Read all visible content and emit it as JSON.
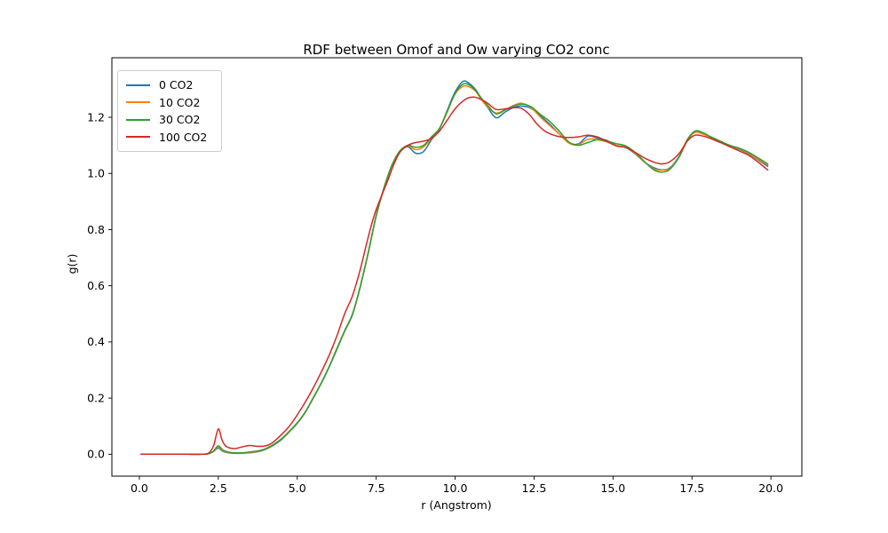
{
  "chart_data": {
    "type": "line",
    "title": "RDF between Omof and Ow varying CO2 conc",
    "xlabel": "r (Angstrom)",
    "ylabel": "g(r)",
    "xlim": [
      -0.87,
      20.98
    ],
    "ylim": [
      -0.078,
      1.412
    ],
    "x_ticks": [
      0.0,
      2.5,
      5.0,
      7.5,
      10.0,
      12.5,
      15.0,
      17.5,
      20.0
    ],
    "x_tick_labels": [
      "0.0",
      "2.5",
      "5.0",
      "7.5",
      "10.0",
      "12.5",
      "15.0",
      "17.5",
      "20.0"
    ],
    "y_ticks": [
      0.0,
      0.2,
      0.4,
      0.6,
      0.8,
      1.0,
      1.2
    ],
    "y_tick_labels": [
      "0.0",
      "0.2",
      "0.4",
      "0.6",
      "0.8",
      "1.0",
      "1.2"
    ],
    "grid": false,
    "legend_position": "upper left",
    "axis_color": "#000000",
    "background": "#ffffff",
    "series": [
      {
        "name": "0 CO2",
        "color": "#1f77b4",
        "points": [
          [
            0.05,
            0
          ],
          [
            0.5,
            0
          ],
          [
            1,
            0
          ],
          [
            1.5,
            0
          ],
          [
            2,
            0
          ],
          [
            2.2,
            0.002
          ],
          [
            2.35,
            0.01
          ],
          [
            2.5,
            0.022
          ],
          [
            2.65,
            0.01
          ],
          [
            2.9,
            0.004
          ],
          [
            3.2,
            0.003
          ],
          [
            3.5,
            0.005
          ],
          [
            3.8,
            0.01
          ],
          [
            4.0,
            0.018
          ],
          [
            4.25,
            0.032
          ],
          [
            4.5,
            0.052
          ],
          [
            4.75,
            0.08
          ],
          [
            5.0,
            0.11
          ],
          [
            5.25,
            0.148
          ],
          [
            5.5,
            0.198
          ],
          [
            5.75,
            0.25
          ],
          [
            6.0,
            0.308
          ],
          [
            6.25,
            0.372
          ],
          [
            6.5,
            0.437
          ],
          [
            6.75,
            0.497
          ],
          [
            7.0,
            0.598
          ],
          [
            7.25,
            0.718
          ],
          [
            7.5,
            0.848
          ],
          [
            7.75,
            0.948
          ],
          [
            8.0,
            1.028
          ],
          [
            8.25,
            1.078
          ],
          [
            8.5,
            1.095
          ],
          [
            8.75,
            1.072
          ],
          [
            9.0,
            1.078
          ],
          [
            9.25,
            1.12
          ],
          [
            9.5,
            1.158
          ],
          [
            9.75,
            1.225
          ],
          [
            10.0,
            1.29
          ],
          [
            10.25,
            1.328
          ],
          [
            10.45,
            1.32
          ],
          [
            10.65,
            1.298
          ],
          [
            10.85,
            1.262
          ],
          [
            11.05,
            1.232
          ],
          [
            11.3,
            1.198
          ],
          [
            11.6,
            1.22
          ],
          [
            11.85,
            1.235
          ],
          [
            12.1,
            1.24
          ],
          [
            12.4,
            1.232
          ],
          [
            12.7,
            1.205
          ],
          [
            13.0,
            1.175
          ],
          [
            13.3,
            1.14
          ],
          [
            13.6,
            1.11
          ],
          [
            13.9,
            1.105
          ],
          [
            14.2,
            1.133
          ],
          [
            14.5,
            1.126
          ],
          [
            14.8,
            1.118
          ],
          [
            15.1,
            1.1
          ],
          [
            15.4,
            1.092
          ],
          [
            15.7,
            1.07
          ],
          [
            16.0,
            1.04
          ],
          [
            16.3,
            1.02
          ],
          [
            16.55,
            1.013
          ],
          [
            16.8,
            1.02
          ],
          [
            17.1,
            1.062
          ],
          [
            17.35,
            1.118
          ],
          [
            17.6,
            1.148
          ],
          [
            17.85,
            1.142
          ],
          [
            18.1,
            1.128
          ],
          [
            18.4,
            1.112
          ],
          [
            18.7,
            1.098
          ],
          [
            19.0,
            1.086
          ],
          [
            19.3,
            1.07
          ],
          [
            19.6,
            1.048
          ],
          [
            19.9,
            1.025
          ]
        ]
      },
      {
        "name": "10 CO2",
        "color": "#ff7f0e",
        "points": [
          [
            0.05,
            0
          ],
          [
            0.5,
            0
          ],
          [
            1,
            0
          ],
          [
            1.5,
            0
          ],
          [
            2,
            0
          ],
          [
            2.2,
            0.002
          ],
          [
            2.35,
            0.011
          ],
          [
            2.5,
            0.026
          ],
          [
            2.65,
            0.012
          ],
          [
            2.9,
            0.005
          ],
          [
            3.2,
            0.004
          ],
          [
            3.5,
            0.006
          ],
          [
            3.8,
            0.012
          ],
          [
            4.0,
            0.019
          ],
          [
            4.25,
            0.034
          ],
          [
            4.5,
            0.054
          ],
          [
            4.75,
            0.081
          ],
          [
            5.0,
            0.111
          ],
          [
            5.25,
            0.149
          ],
          [
            5.5,
            0.199
          ],
          [
            5.75,
            0.251
          ],
          [
            6.0,
            0.309
          ],
          [
            6.25,
            0.374
          ],
          [
            6.5,
            0.438
          ],
          [
            6.75,
            0.499
          ],
          [
            7.0,
            0.599
          ],
          [
            7.25,
            0.719
          ],
          [
            7.5,
            0.849
          ],
          [
            7.75,
            0.949
          ],
          [
            8.0,
            1.029
          ],
          [
            8.25,
            1.079
          ],
          [
            8.5,
            1.098
          ],
          [
            8.75,
            1.085
          ],
          [
            9.0,
            1.095
          ],
          [
            9.25,
            1.125
          ],
          [
            9.5,
            1.159
          ],
          [
            9.75,
            1.222
          ],
          [
            10.0,
            1.283
          ],
          [
            10.25,
            1.31
          ],
          [
            10.45,
            1.308
          ],
          [
            10.65,
            1.292
          ],
          [
            10.85,
            1.26
          ],
          [
            11.05,
            1.235
          ],
          [
            11.3,
            1.215
          ],
          [
            11.6,
            1.228
          ],
          [
            11.85,
            1.242
          ],
          [
            12.1,
            1.25
          ],
          [
            12.4,
            1.235
          ],
          [
            12.7,
            1.2
          ],
          [
            13.0,
            1.17
          ],
          [
            13.3,
            1.14
          ],
          [
            13.6,
            1.108
          ],
          [
            13.9,
            1.102
          ],
          [
            14.2,
            1.122
          ],
          [
            14.5,
            1.12
          ],
          [
            14.8,
            1.112
          ],
          [
            15.1,
            1.1
          ],
          [
            15.4,
            1.093
          ],
          [
            15.7,
            1.072
          ],
          [
            16.0,
            1.04
          ],
          [
            16.3,
            1.016
          ],
          [
            16.55,
            1.012
          ],
          [
            16.8,
            1.018
          ],
          [
            17.1,
            1.06
          ],
          [
            17.35,
            1.116
          ],
          [
            17.6,
            1.146
          ],
          [
            17.85,
            1.14
          ],
          [
            18.1,
            1.128
          ],
          [
            18.4,
            1.113
          ],
          [
            18.7,
            1.098
          ],
          [
            19.0,
            1.088
          ],
          [
            19.3,
            1.072
          ],
          [
            19.6,
            1.05
          ],
          [
            19.9,
            1.03
          ]
        ]
      },
      {
        "name": "30 CO2",
        "color": "#2ca02c",
        "points": [
          [
            0.05,
            0
          ],
          [
            0.5,
            0
          ],
          [
            1,
            0
          ],
          [
            1.5,
            0
          ],
          [
            2,
            0
          ],
          [
            2.2,
            0.002
          ],
          [
            2.35,
            0.012
          ],
          [
            2.5,
            0.03
          ],
          [
            2.65,
            0.015
          ],
          [
            2.9,
            0.006
          ],
          [
            3.2,
            0.005
          ],
          [
            3.5,
            0.008
          ],
          [
            3.8,
            0.013
          ],
          [
            4.0,
            0.02
          ],
          [
            4.25,
            0.035
          ],
          [
            4.5,
            0.055
          ],
          [
            4.75,
            0.082
          ],
          [
            5.0,
            0.112
          ],
          [
            5.25,
            0.15
          ],
          [
            5.5,
            0.2
          ],
          [
            5.75,
            0.252
          ],
          [
            6.0,
            0.31
          ],
          [
            6.25,
            0.375
          ],
          [
            6.5,
            0.44
          ],
          [
            6.75,
            0.5
          ],
          [
            7.0,
            0.6
          ],
          [
            7.25,
            0.72
          ],
          [
            7.5,
            0.85
          ],
          [
            7.75,
            0.95
          ],
          [
            8.0,
            1.03
          ],
          [
            8.25,
            1.08
          ],
          [
            8.5,
            1.1
          ],
          [
            8.75,
            1.093
          ],
          [
            9.0,
            1.1
          ],
          [
            9.25,
            1.13
          ],
          [
            9.5,
            1.16
          ],
          [
            9.75,
            1.22
          ],
          [
            10.0,
            1.285
          ],
          [
            10.25,
            1.318
          ],
          [
            10.45,
            1.315
          ],
          [
            10.65,
            1.295
          ],
          [
            10.85,
            1.265
          ],
          [
            11.05,
            1.24
          ],
          [
            11.3,
            1.212
          ],
          [
            11.6,
            1.227
          ],
          [
            11.85,
            1.24
          ],
          [
            12.1,
            1.247
          ],
          [
            12.4,
            1.238
          ],
          [
            12.7,
            1.21
          ],
          [
            13.0,
            1.185
          ],
          [
            13.3,
            1.15
          ],
          [
            13.6,
            1.112
          ],
          [
            13.9,
            1.1
          ],
          [
            14.2,
            1.11
          ],
          [
            14.5,
            1.12
          ],
          [
            14.8,
            1.115
          ],
          [
            15.1,
            1.106
          ],
          [
            15.4,
            1.098
          ],
          [
            15.7,
            1.075
          ],
          [
            16.0,
            1.042
          ],
          [
            16.3,
            1.012
          ],
          [
            16.55,
            1.005
          ],
          [
            16.8,
            1.015
          ],
          [
            17.1,
            1.06
          ],
          [
            17.35,
            1.12
          ],
          [
            17.6,
            1.151
          ],
          [
            17.85,
            1.145
          ],
          [
            18.1,
            1.13
          ],
          [
            18.4,
            1.115
          ],
          [
            18.7,
            1.1
          ],
          [
            19.0,
            1.09
          ],
          [
            19.3,
            1.075
          ],
          [
            19.6,
            1.055
          ],
          [
            19.9,
            1.034
          ]
        ]
      },
      {
        "name": "100 CO2",
        "color": "#d62728",
        "points": [
          [
            0.05,
            0
          ],
          [
            0.5,
            0
          ],
          [
            1,
            0
          ],
          [
            1.5,
            0
          ],
          [
            2,
            0
          ],
          [
            2.2,
            0.005
          ],
          [
            2.35,
            0.03
          ],
          [
            2.5,
            0.09
          ],
          [
            2.62,
            0.05
          ],
          [
            2.75,
            0.028
          ],
          [
            3.0,
            0.02
          ],
          [
            3.25,
            0.026
          ],
          [
            3.5,
            0.031
          ],
          [
            3.75,
            0.028
          ],
          [
            4.0,
            0.03
          ],
          [
            4.2,
            0.04
          ],
          [
            4.5,
            0.07
          ],
          [
            4.75,
            0.1
          ],
          [
            5.0,
            0.14
          ],
          [
            5.25,
            0.185
          ],
          [
            5.5,
            0.235
          ],
          [
            5.75,
            0.29
          ],
          [
            6.0,
            0.35
          ],
          [
            6.25,
            0.42
          ],
          [
            6.5,
            0.5
          ],
          [
            6.75,
            0.565
          ],
          [
            7.0,
            0.66
          ],
          [
            7.25,
            0.775
          ],
          [
            7.45,
            0.855
          ],
          [
            7.65,
            0.915
          ],
          [
            7.85,
            0.97
          ],
          [
            8.05,
            1.03
          ],
          [
            8.25,
            1.075
          ],
          [
            8.5,
            1.1
          ],
          [
            8.75,
            1.11
          ],
          [
            9.0,
            1.115
          ],
          [
            9.25,
            1.125
          ],
          [
            9.5,
            1.15
          ],
          [
            9.75,
            1.19
          ],
          [
            10.0,
            1.23
          ],
          [
            10.3,
            1.262
          ],
          [
            10.55,
            1.272
          ],
          [
            10.8,
            1.265
          ],
          [
            11.05,
            1.248
          ],
          [
            11.3,
            1.228
          ],
          [
            11.6,
            1.23
          ],
          [
            11.85,
            1.234
          ],
          [
            12.1,
            1.232
          ],
          [
            12.35,
            1.21
          ],
          [
            12.6,
            1.175
          ],
          [
            12.85,
            1.15
          ],
          [
            13.1,
            1.137
          ],
          [
            13.35,
            1.13
          ],
          [
            13.6,
            1.128
          ],
          [
            13.9,
            1.13
          ],
          [
            14.2,
            1.136
          ],
          [
            14.5,
            1.13
          ],
          [
            14.8,
            1.115
          ],
          [
            15.1,
            1.098
          ],
          [
            15.4,
            1.093
          ],
          [
            15.7,
            1.075
          ],
          [
            16.0,
            1.055
          ],
          [
            16.3,
            1.04
          ],
          [
            16.55,
            1.034
          ],
          [
            16.8,
            1.042
          ],
          [
            17.1,
            1.072
          ],
          [
            17.35,
            1.115
          ],
          [
            17.6,
            1.136
          ],
          [
            17.85,
            1.133
          ],
          [
            18.1,
            1.124
          ],
          [
            18.4,
            1.11
          ],
          [
            18.7,
            1.095
          ],
          [
            19.0,
            1.08
          ],
          [
            19.3,
            1.064
          ],
          [
            19.6,
            1.04
          ],
          [
            19.9,
            1.012
          ]
        ]
      }
    ]
  }
}
